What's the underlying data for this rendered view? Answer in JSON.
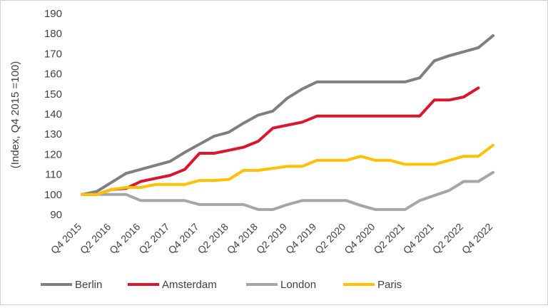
{
  "chart_data": {
    "type": "line",
    "title": "",
    "xlabel": "",
    "ylabel": "(Index, Q4 2015 =100)",
    "ylim": [
      90,
      190
    ],
    "yticks": [
      90,
      100,
      110,
      120,
      130,
      140,
      150,
      160,
      170,
      180,
      190
    ],
    "grid": false,
    "legend_position": "bottom",
    "x_tick_labels": [
      "Q4 2015",
      "Q2 2016",
      "Q4 2016",
      "Q2 2017",
      "Q4 2017",
      "Q2 2018",
      "Q4 2018",
      "Q2 2019",
      "Q4 2019",
      "Q2 2020",
      "Q4 2020",
      "Q2 2021",
      "Q4 2021",
      "Q2 2022",
      "Q4 2022"
    ],
    "categories": [
      "Q4 2015",
      "Q1 2016",
      "Q2 2016",
      "Q3 2016",
      "Q4 2016",
      "Q1 2017",
      "Q2 2017",
      "Q3 2017",
      "Q4 2017",
      "Q1 2018",
      "Q2 2018",
      "Q3 2018",
      "Q4 2018",
      "Q1 2019",
      "Q2 2019",
      "Q3 2019",
      "Q4 2019",
      "Q1 2020",
      "Q2 2020",
      "Q3 2020",
      "Q4 2020",
      "Q1 2021",
      "Q2 2021",
      "Q3 2021",
      "Q4 2021",
      "Q1 2022",
      "Q2 2022",
      "Q3 2022",
      "Q4 2022"
    ],
    "series": [
      {
        "name": "Berlin",
        "color": "#7f7f7f",
        "values": [
          100,
          101.5,
          106,
          110.5,
          112.5,
          114.5,
          116.5,
          121,
          125,
          129,
          131,
          135.5,
          139.5,
          141.5,
          148,
          152.5,
          156,
          156,
          156,
          156,
          156,
          156,
          156,
          158,
          166.5,
          169,
          171,
          173,
          179
        ]
      },
      {
        "name": "Amsterdam",
        "color": "#d9162b",
        "values": [
          100,
          100,
          102.5,
          103,
          106.5,
          108,
          109.5,
          112.5,
          120.5,
          120.5,
          122,
          123.5,
          126.5,
          133,
          134.5,
          136,
          139,
          139,
          139,
          139,
          139,
          139,
          139,
          139,
          147,
          147,
          148.5,
          153,
          null
        ]
      },
      {
        "name": "London",
        "color": "#a6a6a6",
        "values": [
          100,
          100,
          100,
          100,
          97,
          97,
          97,
          97,
          95,
          95,
          95,
          95,
          92.5,
          92.5,
          95,
          97,
          97,
          97,
          97,
          94.5,
          92.5,
          92.5,
          92.5,
          97,
          99.5,
          102,
          106.5,
          106.5,
          111
        ]
      },
      {
        "name": "Paris",
        "color": "#ffc000",
        "values": [
          100,
          100,
          102.5,
          103.5,
          103.5,
          105,
          105,
          105,
          107,
          107,
          107.5,
          112,
          112,
          113,
          114,
          114,
          117,
          117,
          117,
          119,
          117,
          117,
          115,
          115,
          115,
          117,
          119,
          119,
          124.5
        ]
      }
    ]
  }
}
